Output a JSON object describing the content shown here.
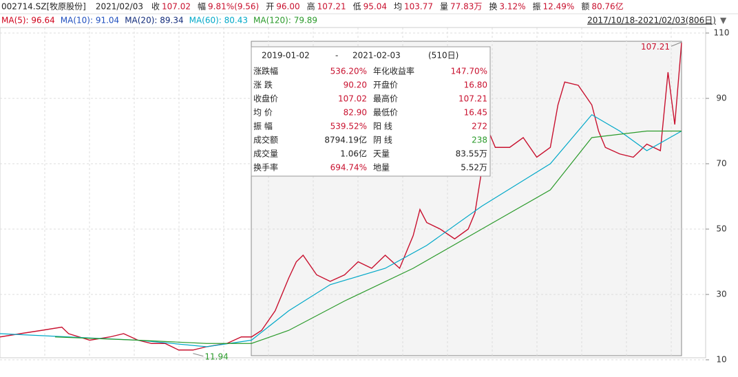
{
  "header": {
    "code": "002714.SZ[牧原股份]",
    "date": "2021/02/03",
    "fields": [
      [
        "收",
        "107.02"
      ],
      [
        "幅",
        "9.81%(9.56)"
      ],
      [
        "开",
        "96.00"
      ],
      [
        "高",
        "107.21"
      ],
      [
        "低",
        "95.04"
      ],
      [
        "均",
        "103.77"
      ],
      [
        "量",
        "77.83万"
      ],
      [
        "换",
        "3.12%"
      ],
      [
        "振",
        "12.49%"
      ],
      [
        "额",
        "80.76亿"
      ]
    ]
  },
  "ma_legend": [
    {
      "label": "MA(5): 96.64",
      "color": "#d0021b"
    },
    {
      "label": "MA(10): 91.04",
      "color": "#1f4fbf"
    },
    {
      "label": "MA(20): 89.34",
      "color": "#102a7a"
    },
    {
      "label": "MA(60): 80.43",
      "color": "#00a8c8"
    },
    {
      "label": "MA(120): 79.89",
      "color": "#2a9a2a"
    }
  ],
  "range_label": "2017/10/18-2021/02/03(806日)",
  "panel": {
    "start": "2019-01-02",
    "dash": "-",
    "end": "2021-02-03",
    "days": "(510日)",
    "rows": [
      [
        "涨跌幅",
        "536.20%",
        "年化收益率",
        "147.70%"
      ],
      [
        "涨  跌",
        "90.20",
        "开盘价",
        "16.80"
      ],
      [
        "收盘价",
        "107.02",
        "最高价",
        "107.21"
      ],
      [
        "均  价",
        "82.90",
        "最低价",
        "16.45"
      ],
      [
        "振  幅",
        "539.52%",
        "阳  线",
        "272"
      ],
      [
        "成交额",
        "8794.19亿",
        "阴  线",
        "238"
      ],
      [
        "成交量",
        "1.06亿",
        "天量",
        "83.55万"
      ],
      [
        "换手率",
        "694.74%",
        "地量",
        "5.52万"
      ]
    ]
  },
  "chart_data": {
    "type": "line",
    "xlim": [
      0,
      805
    ],
    "ylim": [
      10,
      110
    ],
    "yticks": [
      110,
      90,
      70,
      50,
      30,
      10
    ],
    "annotations": [
      {
        "text": "107.21",
        "x": 805,
        "y": 107.21
      },
      {
        "text": "11.94",
        "x": 228,
        "y": 11.94
      }
    ],
    "series": [
      {
        "color": "#c8102e",
        "x": [
          0,
          24,
          49,
          73,
          81,
          106,
          130,
          146,
          163,
          179,
          195,
          211,
          228,
          244,
          268,
          285,
          297,
          309,
          325,
          341,
          350,
          358,
          374,
          390,
          407,
          423,
          439,
          455,
          472,
          488,
          496,
          504,
          520,
          537,
          553,
          561,
          569,
          577,
          585,
          602,
          618,
          634,
          650,
          659,
          667,
          683,
          699,
          707,
          715,
          732,
          748,
          764,
          780,
          789,
          797,
          805
        ],
        "values": [
          17,
          18,
          19,
          20,
          18,
          16,
          17,
          18,
          16,
          15,
          15,
          13,
          13,
          14,
          15,
          17,
          17,
          19,
          25,
          35,
          40,
          42,
          36,
          34,
          36,
          40,
          38,
          42,
          38,
          48,
          56,
          52,
          50,
          47,
          50,
          55,
          68,
          80,
          75,
          75,
          78,
          72,
          75,
          88,
          95,
          94,
          88,
          80,
          75,
          73,
          72,
          76,
          74,
          98,
          82,
          107
        ]
      },
      {
        "color": "#00a8c8",
        "x": [
          0,
          81,
          163,
          244,
          297,
          341,
          390,
          455,
          504,
          569,
          650,
          699,
          732,
          764,
          805
        ],
        "values": [
          18,
          17,
          16,
          14,
          16,
          25,
          33,
          38,
          45,
          57,
          70,
          85,
          80,
          74,
          80
        ]
      },
      {
        "color": "#2a9a2a",
        "x": [
          65,
          163,
          244,
          297,
          341,
          407,
          488,
          569,
          650,
          699,
          764,
          805
        ],
        "values": [
          17,
          16,
          15,
          15,
          19,
          28,
          38,
          50,
          62,
          78,
          80,
          80
        ]
      }
    ]
  }
}
